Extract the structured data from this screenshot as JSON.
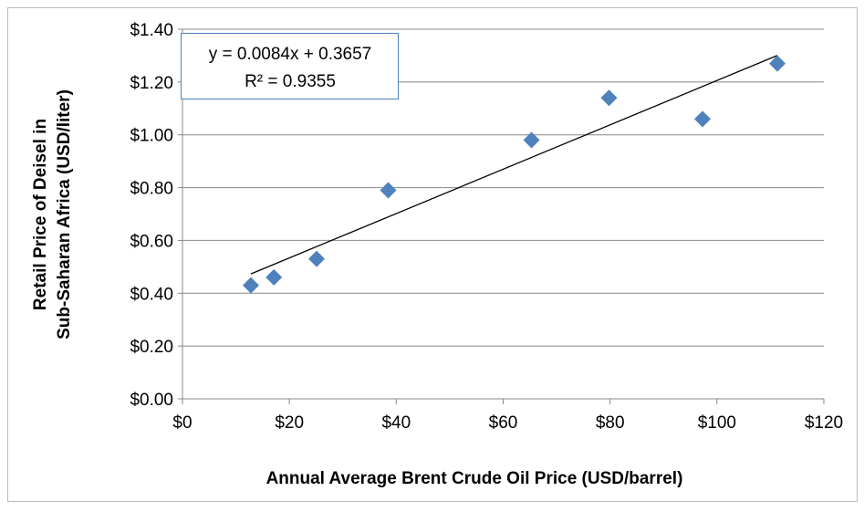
{
  "chart_data": {
    "type": "scatter",
    "x_label": "Annual Average Brent Crude Oil Price (USD/barrel)",
    "y_label": [
      "Retail Price of Deisel in",
      "Sub-Saharan Africa  (USD/liter)"
    ],
    "x": [
      12.8,
      17.1,
      25.1,
      38.5,
      65.3,
      79.8,
      97.3,
      111.3
    ],
    "values": [
      0.43,
      0.46,
      0.53,
      0.79,
      0.98,
      1.14,
      1.06,
      1.27
    ],
    "color": "#4f81bd",
    "xlim": [
      0,
      120
    ],
    "ylim": [
      0,
      1.4
    ],
    "xticks": [
      {
        "value": 0,
        "label": "$0"
      },
      {
        "value": 20,
        "label": "$20"
      },
      {
        "value": 40,
        "label": "$40"
      },
      {
        "value": 60,
        "label": "$60"
      },
      {
        "value": 80,
        "label": "$80"
      },
      {
        "value": 100,
        "label": "$100"
      },
      {
        "value": 120,
        "label": "$120"
      }
    ],
    "yticks": [
      {
        "value": 0,
        "label": "$0.00"
      },
      {
        "value": 0.2,
        "label": "$0.20"
      },
      {
        "value": 0.4,
        "label": "$0.40"
      },
      {
        "value": 0.6,
        "label": "$0.60"
      },
      {
        "value": 0.8,
        "label": "$0.80"
      },
      {
        "value": 1.0,
        "label": "$1.00"
      },
      {
        "value": 1.2,
        "label": "$1.20"
      },
      {
        "value": 1.4,
        "label": "$1.40"
      }
    ],
    "grid": true,
    "trendline": {
      "slope": 0.0084,
      "intercept": 0.3657,
      "equation": "y = 0.0084x + 0.3657",
      "r_squared": "R² = 0.9355"
    }
  }
}
